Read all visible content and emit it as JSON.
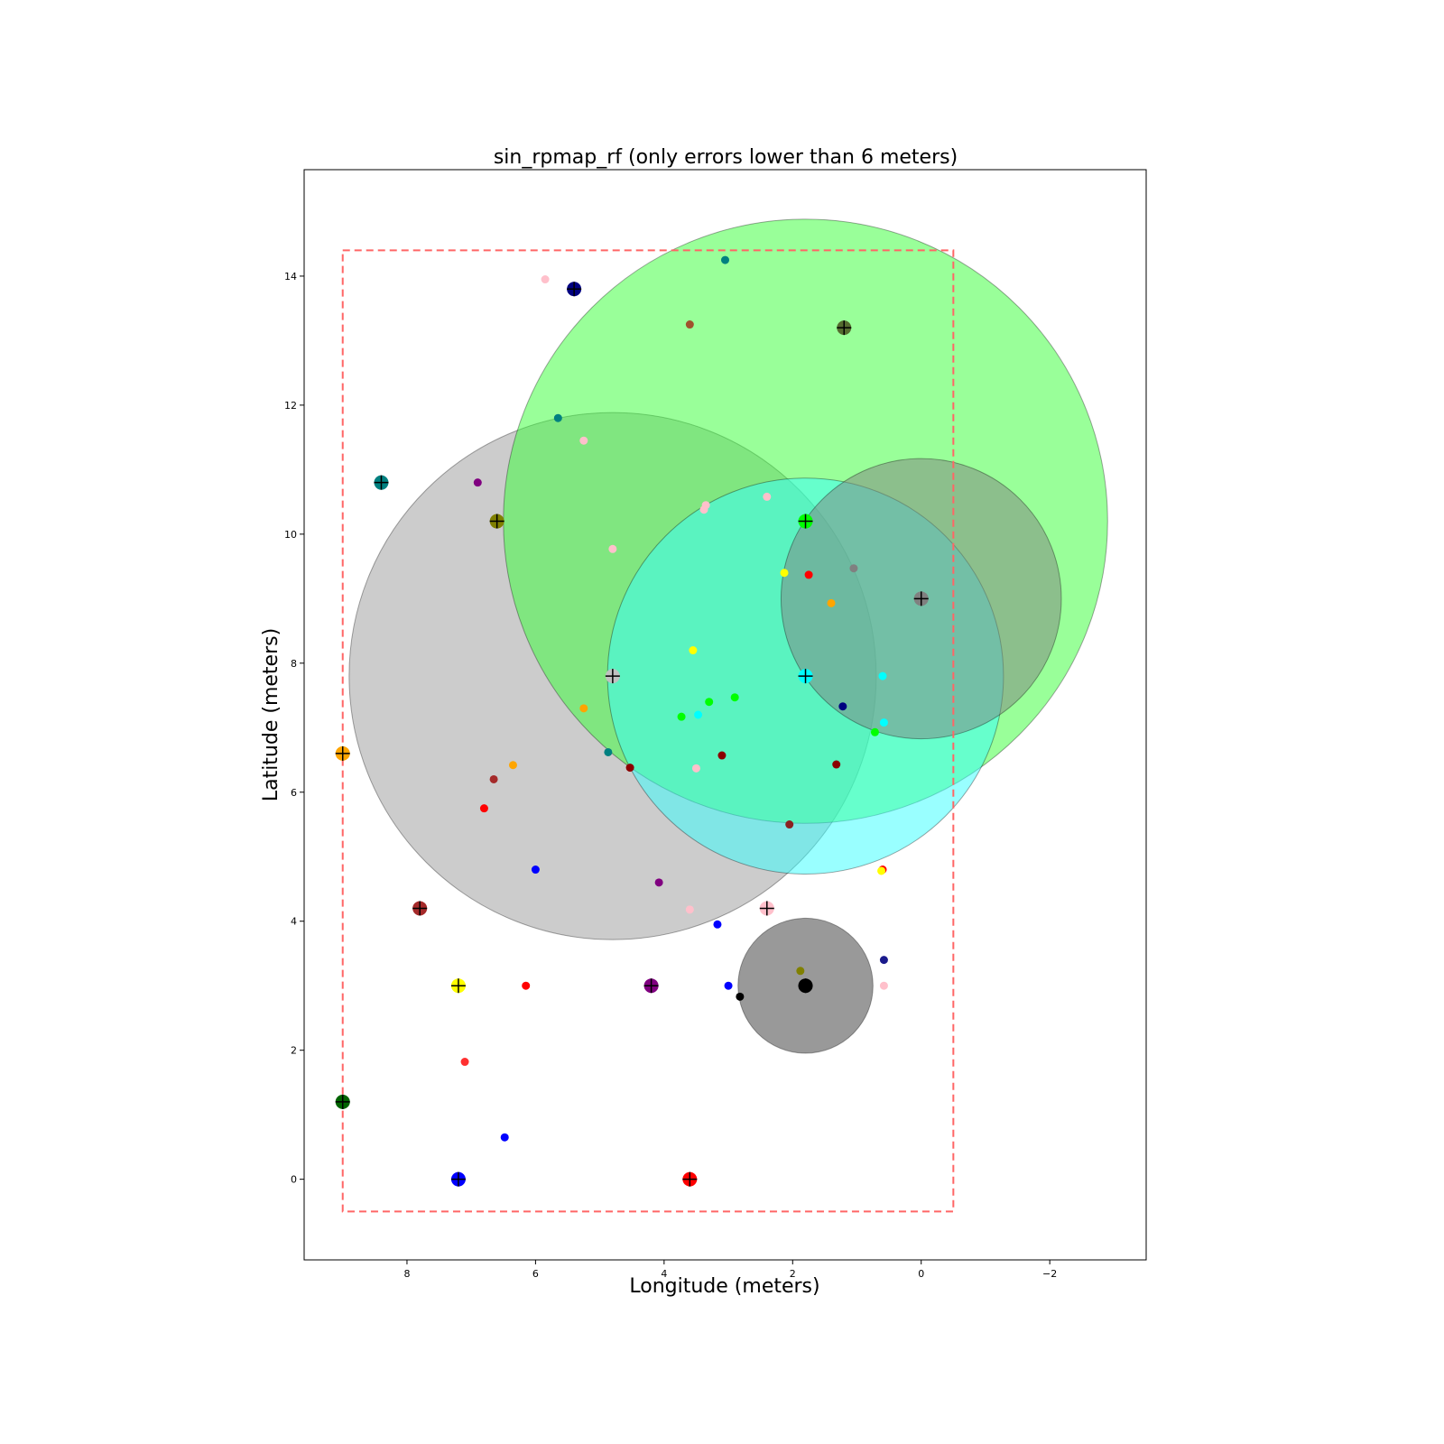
{
  "chart_data": {
    "type": "scatter",
    "title": "sin_rpmap_rf (only errors lower than 6 meters)",
    "xlabel": "Longitude (meters)",
    "ylabel": "Latitude (meters)",
    "xlim": [
      9.6,
      -3.5
    ],
    "ylim": [
      -1.25,
      15.65
    ],
    "x_inverted": true,
    "grid": false,
    "xticks": [
      {
        "value": 8,
        "label": "8"
      },
      {
        "value": 6,
        "label": "6"
      },
      {
        "value": 4,
        "label": "4"
      },
      {
        "value": 2,
        "label": "2"
      },
      {
        "value": 0,
        "label": "0"
      },
      {
        "value": -2,
        "label": "−2"
      }
    ],
    "yticks": [
      {
        "value": 0,
        "label": "0"
      },
      {
        "value": 2,
        "label": "2"
      },
      {
        "value": 4,
        "label": "4"
      },
      {
        "value": 6,
        "label": "6"
      },
      {
        "value": 8,
        "label": "8"
      },
      {
        "value": 10,
        "label": "10"
      },
      {
        "value": 12,
        "label": "12"
      },
      {
        "value": 14,
        "label": "14"
      }
    ],
    "boundary_box": {
      "x": [
        -0.5,
        9.0
      ],
      "y": [
        -0.5,
        14.4
      ],
      "color": "#ff6666",
      "style": "dashed"
    },
    "error_circles": [
      {
        "x": 4.8,
        "y": 7.8,
        "r": 4.1,
        "color": "#999999",
        "alpha": 0.5
      },
      {
        "x": 1.8,
        "y": 10.2,
        "r": 4.7,
        "color": "#33ff33",
        "alpha": 0.5
      },
      {
        "x": 1.8,
        "y": 7.8,
        "r": 3.08,
        "color": "#33ffff",
        "alpha": 0.5
      },
      {
        "x": 0.0,
        "y": 9.0,
        "r": 2.18,
        "color": "#808080",
        "alpha": 0.5
      },
      {
        "x": 1.8,
        "y": 3.0,
        "r": 1.05,
        "color": "#333333",
        "alpha": 0.5
      }
    ],
    "reference_points": [
      {
        "x": 5.4,
        "y": 13.8,
        "color": "#000080"
      },
      {
        "x": 1.2,
        "y": 13.2,
        "color": "#556b2f"
      },
      {
        "x": 8.4,
        "y": 10.8,
        "color": "#008080"
      },
      {
        "x": 6.6,
        "y": 10.2,
        "color": "#808000"
      },
      {
        "x": 1.8,
        "y": 10.2,
        "color": "#00ff00"
      },
      {
        "x": 0.0,
        "y": 9.0,
        "color": "#808080"
      },
      {
        "x": 4.8,
        "y": 7.8,
        "color": "#c0c0c0"
      },
      {
        "x": 1.8,
        "y": 7.8,
        "color": "#00ffff"
      },
      {
        "x": 9.0,
        "y": 6.6,
        "color": "#ffa500"
      },
      {
        "x": 7.8,
        "y": 4.2,
        "color": "#a52a2a"
      },
      {
        "x": 2.4,
        "y": 4.2,
        "color": "#ffc0cb"
      },
      {
        "x": 7.2,
        "y": 3.0,
        "color": "#ffff00"
      },
      {
        "x": 4.2,
        "y": 3.0,
        "color": "#800080"
      },
      {
        "x": 1.8,
        "y": 3.0,
        "color": "#000000"
      },
      {
        "x": 9.0,
        "y": 1.2,
        "color": "#006400"
      },
      {
        "x": 7.2,
        "y": 0.0,
        "color": "#0000ff"
      },
      {
        "x": 3.6,
        "y": 0.0,
        "color": "#ff0000"
      }
    ],
    "predicted_points": [
      {
        "x": 5.85,
        "y": 13.95,
        "color": "#ffc0cb"
      },
      {
        "x": 3.05,
        "y": 14.25,
        "color": "#008080"
      },
      {
        "x": 3.6,
        "y": 13.25,
        "color": "#a0522d"
      },
      {
        "x": 5.65,
        "y": 11.8,
        "color": "#008080"
      },
      {
        "x": 5.25,
        "y": 11.45,
        "color": "#ffc0cb"
      },
      {
        "x": 6.9,
        "y": 10.8,
        "color": "#800080"
      },
      {
        "x": 3.35,
        "y": 10.45,
        "color": "#ffc0cb"
      },
      {
        "x": 3.38,
        "y": 10.38,
        "color": "#ffc0cb"
      },
      {
        "x": 2.4,
        "y": 10.58,
        "color": "#ffc0cb"
      },
      {
        "x": 4.8,
        "y": 9.77,
        "color": "#ffc0cb"
      },
      {
        "x": 1.05,
        "y": 9.47,
        "color": "#808080"
      },
      {
        "x": 2.13,
        "y": 9.4,
        "color": "#ffff00"
      },
      {
        "x": 1.75,
        "y": 9.37,
        "color": "#ff0000"
      },
      {
        "x": 1.4,
        "y": 8.93,
        "color": "#ffa500"
      },
      {
        "x": 3.55,
        "y": 8.2,
        "color": "#ffff00"
      },
      {
        "x": 0.6,
        "y": 7.8,
        "color": "#00ffff"
      },
      {
        "x": 2.9,
        "y": 7.47,
        "color": "#00ff00"
      },
      {
        "x": 3.3,
        "y": 7.4,
        "color": "#00ff00"
      },
      {
        "x": 1.22,
        "y": 7.33,
        "color": "#000080"
      },
      {
        "x": 5.25,
        "y": 7.3,
        "color": "#ffa500"
      },
      {
        "x": 3.47,
        "y": 7.2,
        "color": "#00ffff"
      },
      {
        "x": 3.73,
        "y": 7.17,
        "color": "#00ff00"
      },
      {
        "x": 0.58,
        "y": 7.08,
        "color": "#00ffff"
      },
      {
        "x": 0.72,
        "y": 6.93,
        "color": "#00ff00"
      },
      {
        "x": 4.87,
        "y": 6.62,
        "color": "#008080"
      },
      {
        "x": 3.1,
        "y": 6.57,
        "color": "#8b0000"
      },
      {
        "x": 1.32,
        "y": 6.43,
        "color": "#8b0000"
      },
      {
        "x": 6.35,
        "y": 6.42,
        "color": "#ffa500"
      },
      {
        "x": 4.53,
        "y": 6.38,
        "color": "#8b0000"
      },
      {
        "x": 3.5,
        "y": 6.37,
        "color": "#ffc0cb"
      },
      {
        "x": 6.65,
        "y": 6.2,
        "color": "#a52a2a"
      },
      {
        "x": 6.8,
        "y": 5.75,
        "color": "#ff0000"
      },
      {
        "x": 2.05,
        "y": 5.5,
        "color": "#8b2020"
      },
      {
        "x": 6.0,
        "y": 4.8,
        "color": "#0000ff"
      },
      {
        "x": 0.6,
        "y": 4.8,
        "color": "#ff0000"
      },
      {
        "x": 0.62,
        "y": 4.78,
        "color": "#ffff00"
      },
      {
        "x": 4.08,
        "y": 4.6,
        "color": "#800080"
      },
      {
        "x": 3.6,
        "y": 4.18,
        "color": "#ffc0cb"
      },
      {
        "x": 3.17,
        "y": 3.95,
        "color": "#0000ff"
      },
      {
        "x": 0.58,
        "y": 3.4,
        "color": "#1a1a8c"
      },
      {
        "x": 1.88,
        "y": 3.23,
        "color": "#808000"
      },
      {
        "x": 6.15,
        "y": 3.0,
        "color": "#ff0000"
      },
      {
        "x": 3.0,
        "y": 3.0,
        "color": "#0000ff"
      },
      {
        "x": 0.58,
        "y": 3.0,
        "color": "#ffc0cb"
      },
      {
        "x": 2.82,
        "y": 2.83,
        "color": "#000000"
      },
      {
        "x": 7.1,
        "y": 1.82,
        "color": "#ff3030"
      },
      {
        "x": 6.48,
        "y": 0.65,
        "color": "#0000ff"
      }
    ]
  }
}
